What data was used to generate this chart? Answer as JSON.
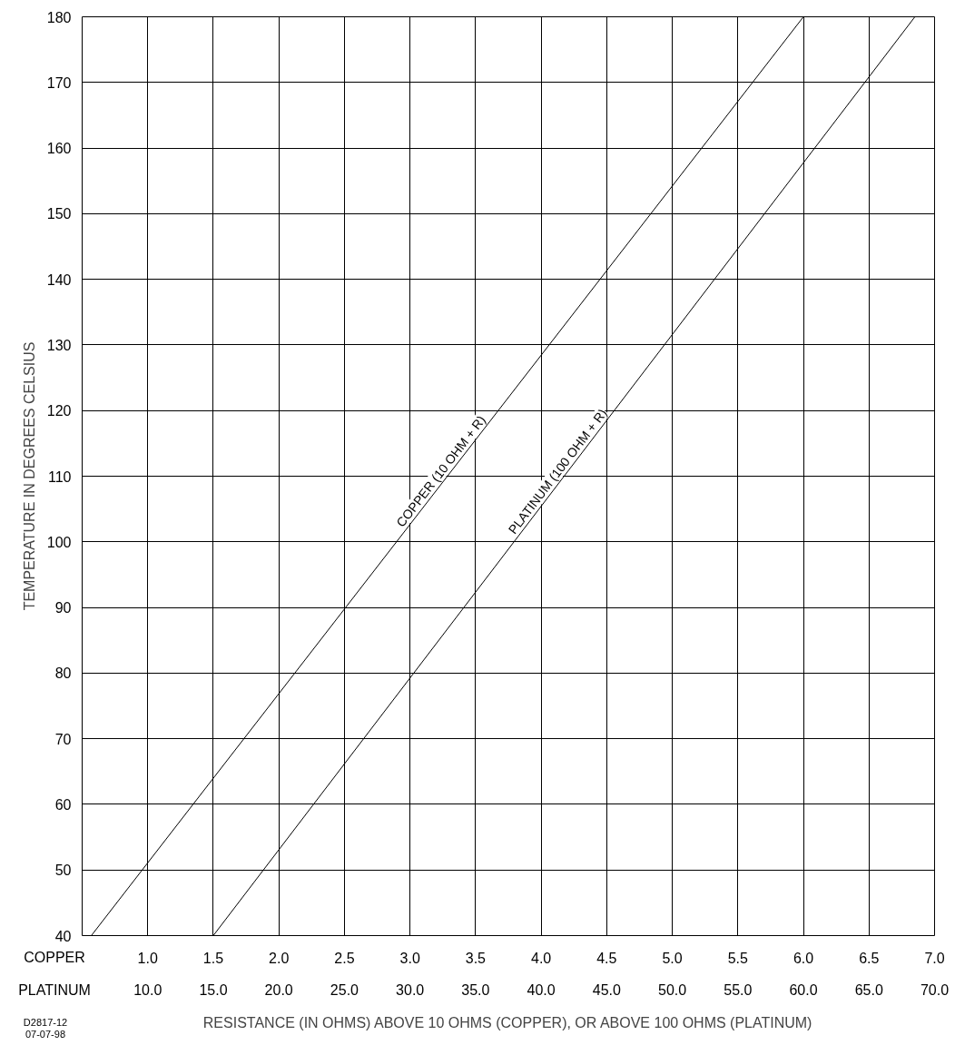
{
  "chart_data": {
    "type": "line",
    "xlabel": "RESISTANCE (IN OHMS) ABOVE 10 OHMS (COPPER), OR ABOVE 100 OHMS (PLATINUM)",
    "ylabel": "TEMPERATURE IN DEGREES CELSIUS",
    "series": [
      {
        "name": "COPPER (10 OHM + R)",
        "color": "#000000",
        "x": [
          0.57,
          6.0
        ],
        "values": [
          40,
          180
        ]
      },
      {
        "name": "PLATINUM (100 OHM + R)",
        "color": "#000000",
        "x": [
          1.5,
          6.85
        ],
        "values": [
          40,
          180
        ]
      }
    ],
    "xlim": [
      0.5,
      7.0
    ],
    "xticks": [
      {
        "value": 1,
        "label": "1.0"
      },
      1.5,
      {
        "value": 2,
        "label": "2.0"
      },
      2.5,
      {
        "value": 3,
        "label": "3.0"
      },
      3.5,
      {
        "value": 4,
        "label": "4.0"
      },
      4.5,
      {
        "value": 5,
        "label": "5.0"
      },
      5.5,
      {
        "value": 6,
        "label": "6.0"
      },
      6.5,
      {
        "value": 7,
        "label": "7.0"
      }
    ],
    "x2lim": [
      5,
      70
    ],
    "x2ticks": [
      {
        "value": 10,
        "label": "10.0"
      },
      {
        "value": 15,
        "label": "15.0"
      },
      {
        "value": 20,
        "label": "20.0"
      },
      {
        "value": 25,
        "label": "25.0"
      },
      {
        "value": 30,
        "label": "30.0"
      },
      {
        "value": 35,
        "label": "35.0"
      },
      {
        "value": 40,
        "label": "40.0"
      },
      {
        "value": 45,
        "label": "45.0"
      },
      {
        "value": 50,
        "label": "50.0"
      },
      {
        "value": 55,
        "label": "55.0"
      },
      {
        "value": 60,
        "label": "60.0"
      },
      {
        "value": 65,
        "label": "65.0"
      },
      {
        "value": 70,
        "label": "70.0"
      }
    ],
    "ylim": [
      40,
      180
    ],
    "yticks": [
      40,
      50,
      60,
      70,
      80,
      90,
      100,
      110,
      120,
      130,
      140,
      150,
      160,
      170,
      180
    ],
    "grid": true,
    "annotations": [
      "COPPER",
      "PLATINUM",
      "D2817-12",
      "07-07-98"
    ]
  }
}
